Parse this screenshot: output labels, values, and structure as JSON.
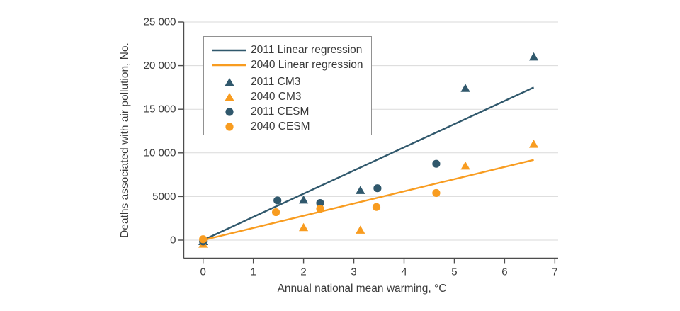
{
  "figure": {
    "background_color": "#ffffff"
  },
  "chart_data": {
    "type": "scatter",
    "title": "",
    "xlabel": "Annual national mean warming, °C",
    "ylabel": "Deaths associated with air pollution, No.",
    "xlim": [
      0,
      7
    ],
    "ylim": [
      0,
      25000
    ],
    "x_ticks": [
      0,
      1,
      2,
      3,
      4,
      5,
      6,
      7
    ],
    "y_ticks": [
      0,
      5000,
      10000,
      15000,
      20000,
      25000
    ],
    "y_tick_labels": [
      "0",
      "5000",
      "10 000",
      "15 000",
      "20 000",
      "25 000"
    ],
    "grid": "horizontal gridlines at each y tick",
    "legend_position": "upper-left inside plot",
    "colors": {
      "series_2011": "#30586C",
      "series_2040": "#F89C20",
      "gridline": "#dadada",
      "axis": "#4d4d4d",
      "text": "#3a3a3a"
    },
    "series": [
      {
        "name": "2011 Linear regression",
        "kind": "line",
        "color": "#30586C",
        "points": [
          [
            0,
            0
          ],
          [
            6.58,
            17500
          ]
        ]
      },
      {
        "name": "2040 Linear regression",
        "kind": "line",
        "color": "#F89C20",
        "points": [
          [
            0,
            0
          ],
          [
            6.58,
            9200
          ]
        ]
      },
      {
        "name": "2011 CM3",
        "kind": "scatter",
        "marker": "triangle",
        "color": "#30586C",
        "points": [
          [
            0,
            -150
          ],
          [
            2.0,
            4600
          ],
          [
            3.13,
            5700
          ],
          [
            5.22,
            17400
          ],
          [
            6.58,
            21000
          ]
        ]
      },
      {
        "name": "2040 CM3",
        "kind": "scatter",
        "marker": "triangle",
        "color": "#F89C20",
        "points": [
          [
            0,
            -450
          ],
          [
            2.0,
            1450
          ],
          [
            3.13,
            1150
          ],
          [
            5.22,
            8500
          ],
          [
            6.58,
            11000
          ]
        ]
      },
      {
        "name": "2011 CESM",
        "kind": "scatter",
        "marker": "circle",
        "color": "#30586C",
        "points": [
          [
            0,
            -150
          ],
          [
            1.48,
            4550
          ],
          [
            2.33,
            4250
          ],
          [
            3.47,
            5950
          ],
          [
            4.64,
            8750
          ]
        ]
      },
      {
        "name": "2040 CESM",
        "kind": "scatter",
        "marker": "circle",
        "color": "#F89C20",
        "points": [
          [
            0,
            100
          ],
          [
            1.45,
            3200
          ],
          [
            2.33,
            3600
          ],
          [
            3.45,
            3800
          ],
          [
            4.64,
            5400
          ]
        ]
      }
    ]
  }
}
